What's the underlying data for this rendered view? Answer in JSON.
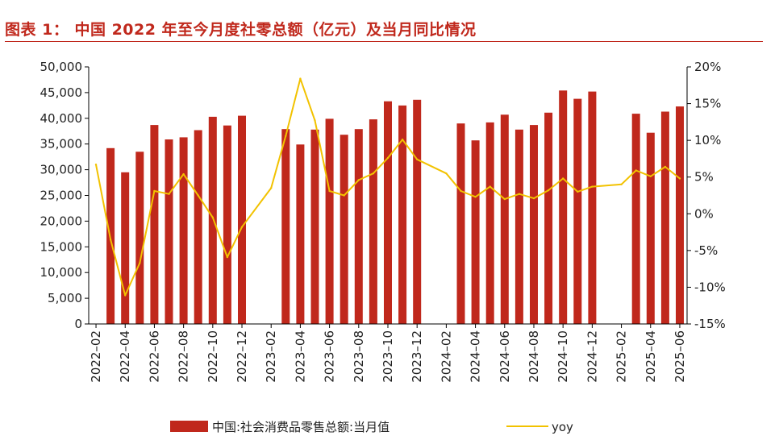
{
  "title": "图表 1： 中国 2022 年至今月度社零总额（亿元）及当月同比情况",
  "colors": {
    "bar": "#c0281c",
    "line": "#f2c200",
    "title": "#c0281c",
    "axis": "#000000"
  },
  "chart_data": {
    "type": "bar",
    "x": [
      "2022-02",
      "2022-03",
      "2022-04",
      "2022-05",
      "2022-06",
      "2022-07",
      "2022-08",
      "2022-09",
      "2022-10",
      "2022-11",
      "2022-12",
      "2023-01",
      "2023-02",
      "2023-03",
      "2023-04",
      "2023-05",
      "2023-06",
      "2023-07",
      "2023-08",
      "2023-09",
      "2023-10",
      "2023-11",
      "2023-12",
      "2024-01",
      "2024-02",
      "2024-03",
      "2024-04",
      "2024-05",
      "2024-06",
      "2024-07",
      "2024-08",
      "2024-09",
      "2024-10",
      "2024-11",
      "2024-12",
      "2025-01",
      "2025-02",
      "2025-03",
      "2025-04",
      "2025-05",
      "2025-06"
    ],
    "xtick_labels": [
      "2022–02",
      "2022–04",
      "2022–06",
      "2022–08",
      "2022–10",
      "2022–12",
      "2023–02",
      "2023–04",
      "2023–06",
      "2023–08",
      "2023–10",
      "2023–12",
      "2024–02",
      "2024–04",
      "2024–06",
      "2024–08",
      "2024–10",
      "2024–12",
      "2025–02",
      "2025–04",
      "2025–06"
    ],
    "series": [
      {
        "name": "中国:社会消费品零售总额:当月值",
        "type": "bar",
        "axis": "left",
        "values": [
          null,
          34200,
          29500,
          33500,
          38700,
          35900,
          36300,
          37700,
          40300,
          38600,
          40500,
          null,
          null,
          37900,
          34900,
          37800,
          39900,
          36800,
          37900,
          39800,
          43300,
          42500,
          43600,
          null,
          null,
          39000,
          35700,
          39200,
          40700,
          37800,
          38700,
          41100,
          45400,
          43800,
          45200,
          null,
          null,
          40900,
          37200,
          41300,
          42300
        ]
      },
      {
        "name": "yoy",
        "type": "line",
        "axis": "right",
        "values": [
          6.7,
          -3.5,
          -11.1,
          -6.7,
          3.1,
          2.7,
          5.4,
          2.5,
          -0.5,
          -5.9,
          -1.8,
          null,
          3.5,
          10.6,
          18.4,
          12.7,
          3.1,
          2.5,
          4.6,
          5.5,
          7.6,
          10.1,
          7.4,
          null,
          5.5,
          3.1,
          2.3,
          3.7,
          2.0,
          2.7,
          2.1,
          3.2,
          4.8,
          3.0,
          3.7,
          null,
          4.0,
          5.9,
          5.1,
          6.4,
          4.8
        ]
      }
    ],
    "y_left": {
      "min": 0,
      "max": 50000,
      "step": 5000
    },
    "y_right": {
      "min": -15,
      "max": 20,
      "step": 5,
      "unit": "%"
    },
    "legend": {
      "placement": "bottom"
    }
  }
}
